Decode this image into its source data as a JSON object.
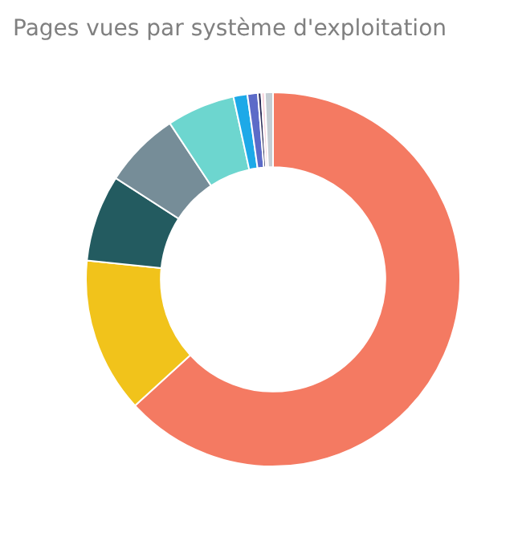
{
  "chart_data": {
    "type": "donut",
    "title": "Pages vues par système d'exploitation",
    "categories": [
      null,
      null,
      null,
      null,
      null,
      null,
      null,
      null,
      null,
      null
    ],
    "values": [
      63.2,
      13.4,
      7.5,
      6.6,
      5.9,
      1.2,
      0.9,
      0.3,
      0.3,
      0.7
    ],
    "colors": [
      "#f47a62",
      "#f1c31b",
      "#235b60",
      "#768d98",
      "#6dd6cf",
      "#1da9e8",
      "#5c6bc8",
      "#2e2f5a",
      "#f6d5dd",
      "#c5cdd3"
    ],
    "legend": false
  }
}
